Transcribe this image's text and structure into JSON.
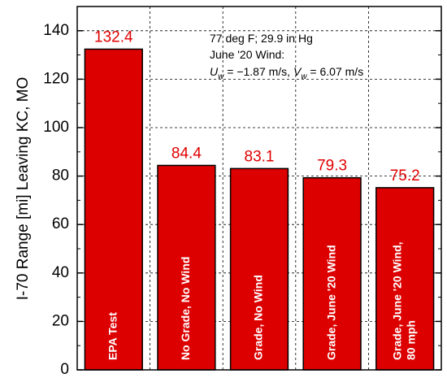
{
  "chart_data": {
    "type": "bar",
    "categories": [
      [
        "EPA Test"
      ],
      [
        "No Grade, No Wind"
      ],
      [
        "Grade, No Wind"
      ],
      [
        "Grade, June '20 Wind"
      ],
      [
        "Grade, June '20 Wind,",
        "80 mph"
      ]
    ],
    "values": [
      132.4,
      84.4,
      83.1,
      79.3,
      75.2
    ],
    "value_labels": [
      "132.4",
      "84.4",
      "83.1",
      "79.3",
      "75.2"
    ],
    "ylabel": "I-70 Range [mi] Leaving KC, MO",
    "ylim": [
      0,
      150
    ],
    "yticks": [
      0,
      20,
      40,
      60,
      80,
      100,
      120,
      140
    ],
    "grid": "dashed",
    "bar_color": "#dd0000",
    "value_label_color": "#e00000",
    "annotation": {
      "line1": "77 deg F; 29.9 in Hg",
      "line2": "June '20 Wind:",
      "line3": {
        "uw_symbol": "U",
        "uw_sub": "w",
        "uw_value": " = −1.87 m/s, ",
        "vw_symbol": "V",
        "vw_sub": "w",
        "vw_value": " = 6.07 m/s"
      }
    }
  }
}
